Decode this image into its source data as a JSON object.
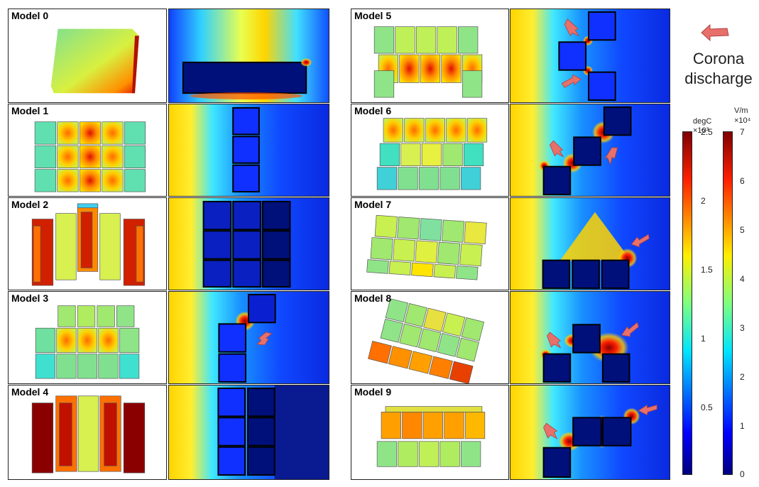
{
  "models": [
    {
      "label": "Model 0"
    },
    {
      "label": "Model 1"
    },
    {
      "label": "Model 2"
    },
    {
      "label": "Model 3"
    },
    {
      "label": "Model 4"
    },
    {
      "label": "Model 5"
    },
    {
      "label": "Model 6"
    },
    {
      "label": "Model 7"
    },
    {
      "label": "Model 8"
    },
    {
      "label": "Model 9"
    }
  ],
  "legend": {
    "line1": "Corona",
    "line2": "discharge",
    "arrow_color": "#e8706a"
  },
  "colorbar_temp": {
    "unit": "degC",
    "mult": "×10³",
    "ticks": [
      "2.5",
      "2",
      "1.5",
      "1",
      "0.5"
    ]
  },
  "colorbar_field": {
    "unit": "V/m",
    "mult": "×10⁴",
    "ticks": [
      "7",
      "6",
      "5",
      "4",
      "3",
      "2",
      "1",
      "0"
    ]
  },
  "colors": {
    "dark_red": "#7f0000",
    "red": "#e31a1c",
    "orange": "#ff8c00",
    "yellow": "#ffe400",
    "green": "#7fd87f",
    "cyan": "#20d0e8",
    "blue": "#1040ff",
    "dark_blue": "#00107a"
  }
}
